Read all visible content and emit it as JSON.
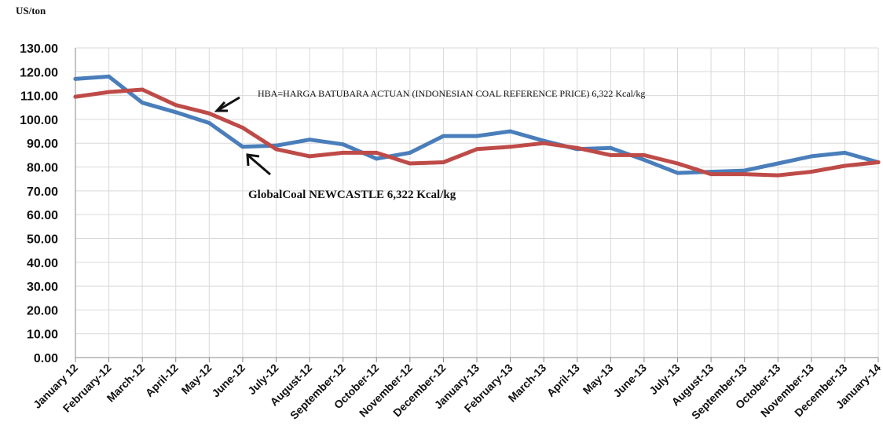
{
  "chart_data": {
    "type": "line",
    "ylabel": "US/ton",
    "ylim": [
      0,
      130
    ],
    "y_ticks": [
      "0.00",
      "10.00",
      "20.00",
      "30.00",
      "40.00",
      "50.00",
      "60.00",
      "70.00",
      "80.00",
      "90.00",
      "100.00",
      "110.00",
      "120.00",
      "130.00"
    ],
    "categories": [
      "January 12",
      "February-12",
      "March-12",
      "April-12",
      "May-12",
      "June-12",
      "July-12",
      "August-12",
      "September-12",
      "October-12",
      "November-12",
      "December-12",
      "January-13",
      "February-13",
      "March-13",
      "April-13",
      "May-13",
      "June-13",
      "July-13",
      "August-13",
      "September-13",
      "October-13",
      "November-13",
      "December-13",
      "January-14"
    ],
    "grid": true,
    "series": [
      {
        "name": "GlobalCoal NEWCASTLE  6,322 Kcal/kg",
        "color": "#4a7ebb",
        "values": [
          117,
          118,
          107,
          103,
          98.5,
          88.5,
          89,
          91.5,
          89.5,
          83.5,
          86,
          93,
          93,
          95,
          91,
          87.5,
          88,
          83,
          77.5,
          78,
          78.5,
          81.5,
          84.5,
          86,
          82
        ]
      },
      {
        "name": "HBA=HARGA BATUBARA ACTUAN (INDONESIAN COAL REFERENCE PRICE) 6,322 Kcal/kg",
        "color": "#be4b48",
        "values": [
          109.5,
          111.5,
          112.5,
          106,
          102.5,
          96.5,
          87.5,
          84.5,
          86,
          86,
          81.5,
          82,
          87.5,
          88.5,
          90,
          88,
          85,
          85,
          81.5,
          77,
          77,
          76.5,
          78,
          80.5,
          82
        ]
      }
    ]
  }
}
